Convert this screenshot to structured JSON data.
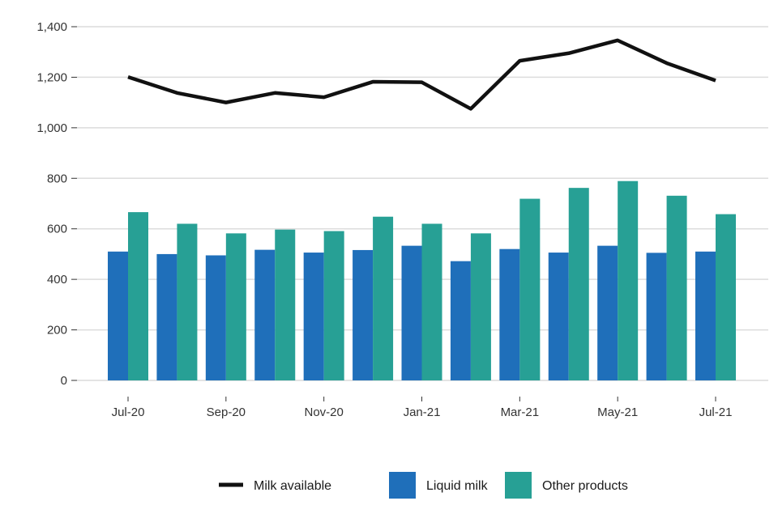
{
  "chart_data": {
    "type": "bar",
    "title": "",
    "xlabel": "",
    "ylabel": "",
    "ylim": [
      0,
      1400
    ],
    "yticks": [
      0,
      200,
      400,
      600,
      800,
      1000,
      1200,
      1400
    ],
    "ytick_labels": [
      "0",
      "200",
      "400",
      "600",
      "800",
      "1,000",
      "1,200",
      "1,400"
    ],
    "grid": true,
    "categories": [
      "Jul-20",
      "Aug-20",
      "Sep-20",
      "Oct-20",
      "Nov-20",
      "Dec-20",
      "Jan-21",
      "Feb-21",
      "Mar-21",
      "Apr-21",
      "May-21",
      "Jun-21",
      "Jul-21"
    ],
    "xtick_labels": [
      "Jul-20",
      "",
      "Sep-20",
      "",
      "Nov-20",
      "",
      "Jan-21",
      "",
      "Mar-21",
      "",
      "May-21",
      "",
      "Jul-21"
    ],
    "series": [
      {
        "name": "Liquid milk",
        "kind": "bar",
        "color": "#1f6fba",
        "values": [
          510,
          500,
          495,
          517,
          506,
          516,
          533,
          472,
          520,
          506,
          533,
          505,
          510
        ]
      },
      {
        "name": "Other products",
        "kind": "bar",
        "color": "#27a095",
        "values": [
          666,
          620,
          582,
          597,
          591,
          648,
          620,
          582,
          719,
          762,
          789,
          731,
          658
        ]
      },
      {
        "name": "Milk available",
        "kind": "line",
        "color": "#111111",
        "values": [
          1201,
          1138,
          1100,
          1138,
          1121,
          1182,
          1180,
          1075,
          1265,
          1295,
          1346,
          1256,
          1187
        ]
      }
    ],
    "legend": {
      "placement": "bottom-center",
      "items": [
        {
          "label": "Milk available",
          "kind": "line",
          "color": "#111111"
        },
        {
          "label": "Liquid milk",
          "kind": "bar",
          "color": "#1f6fba"
        },
        {
          "label": "Other products",
          "kind": "bar",
          "color": "#27a095"
        }
      ]
    }
  }
}
